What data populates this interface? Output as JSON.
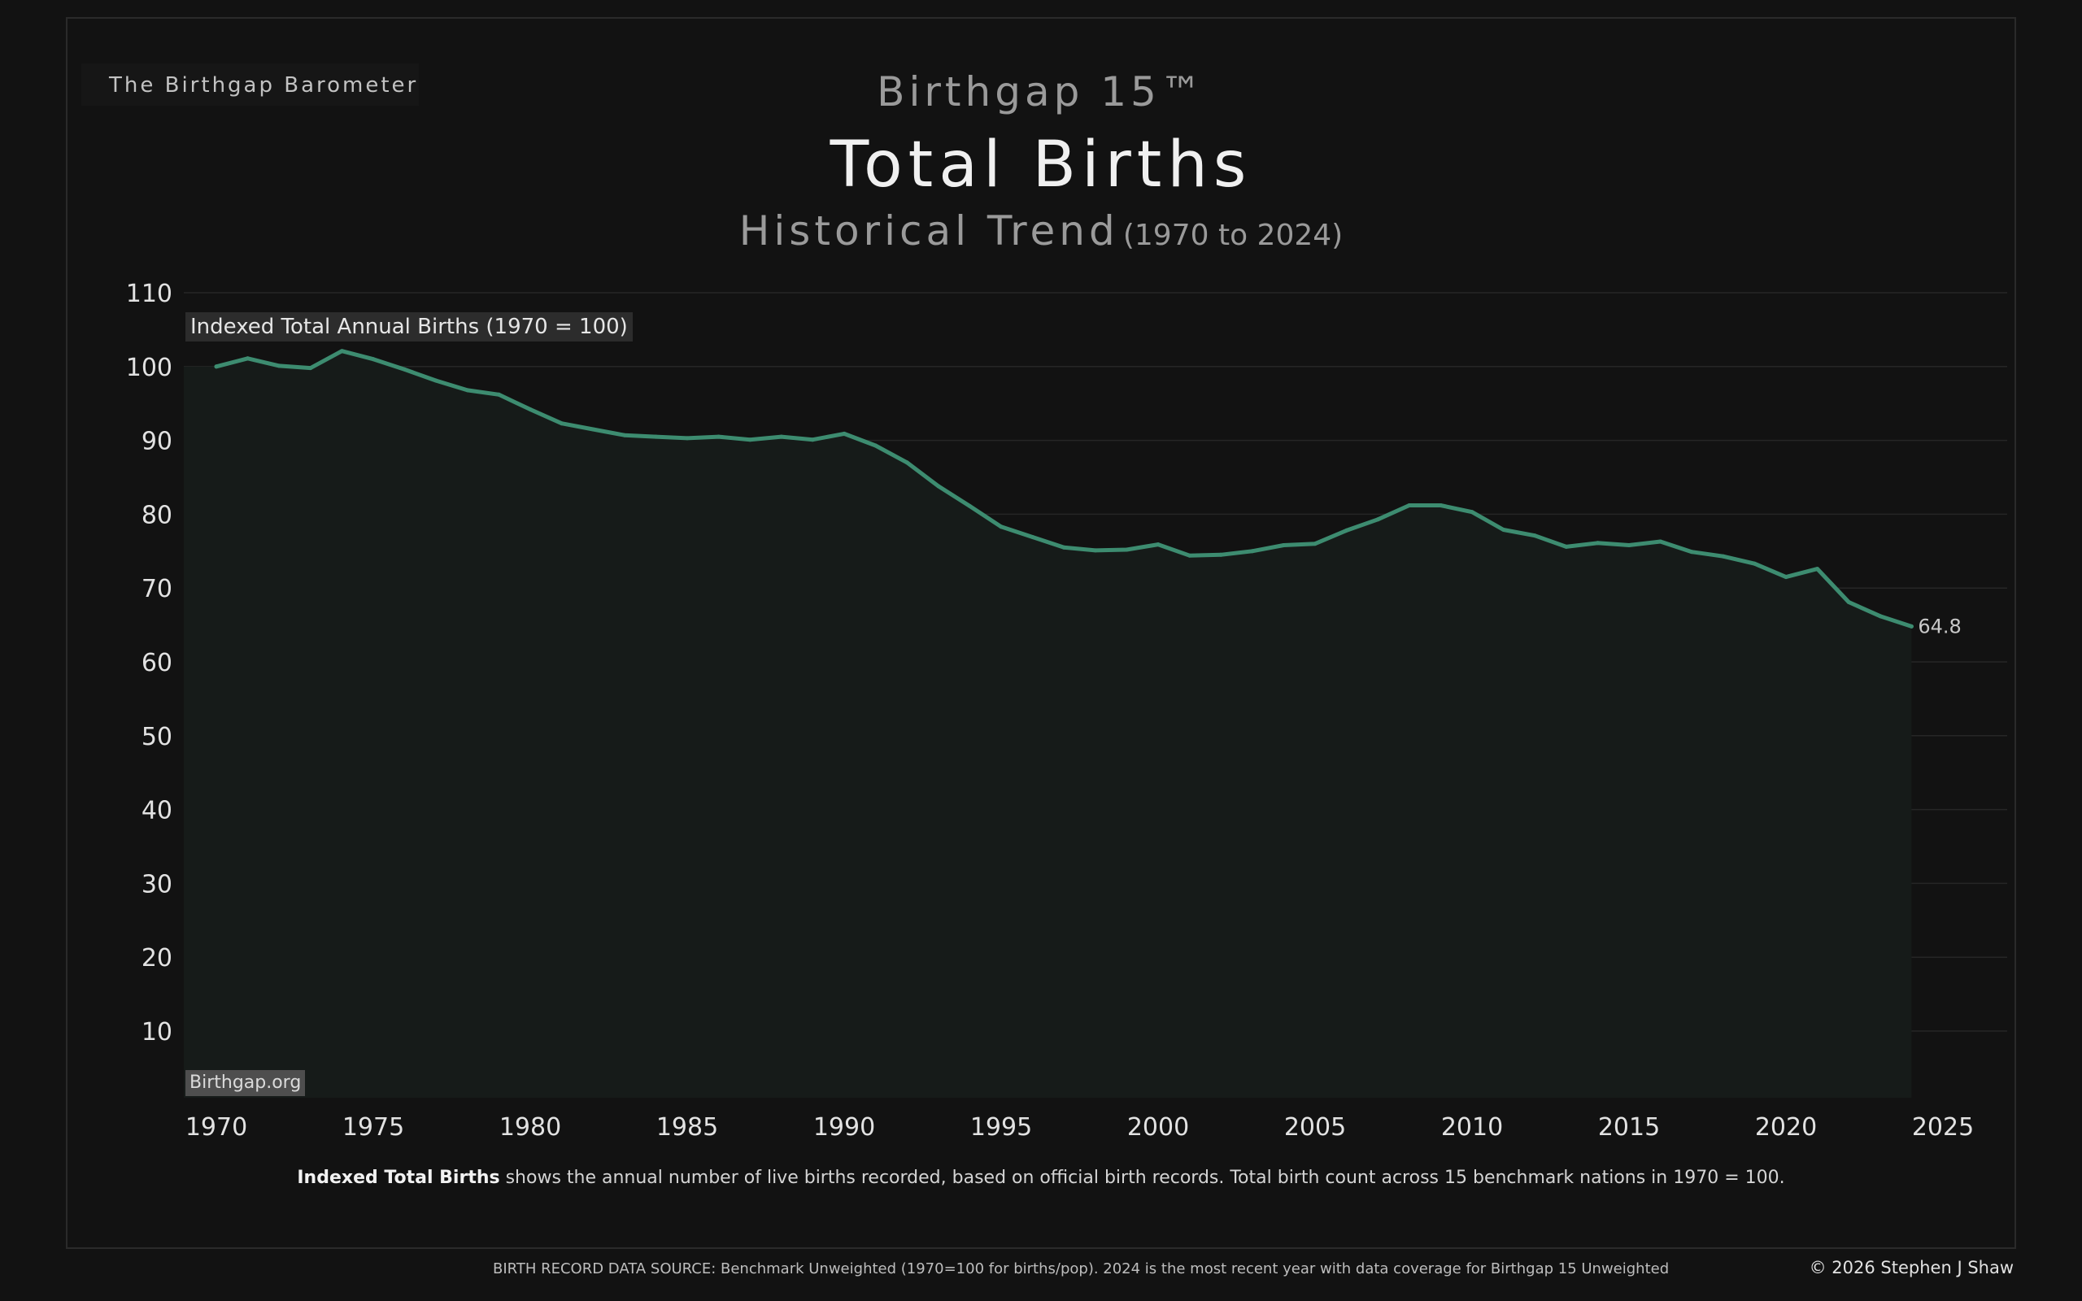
{
  "header": {
    "brand": "The Birthgap Barometer",
    "supertitle": "Birthgap 15™",
    "title": "Total Births",
    "subtitle": "Historical Trend",
    "subtitle_range": "(1970 to 2024)"
  },
  "footer": {
    "caption_bold": "Indexed Total Births",
    "caption_rest": " shows the annual number of live births recorded, based on official birth records. Total birth count across 15 benchmark nations in 1970 = 100.",
    "source": "BIRTH RECORD DATA SOURCE: Benchmark Unweighted (1970=100 for births/pop). 2024 is the most recent year with data coverage for Birthgap 15 Unweighted",
    "copyright": "© 2026 Stephen J Shaw",
    "watermark": "Birthgap.org"
  },
  "colors": {
    "background": "#121212",
    "line": "#3d8c70",
    "area": "#161b19",
    "grid": "#262626"
  },
  "chart_data": {
    "type": "line",
    "ylabel": "Indexed Total Annual Births (1970 = 100)",
    "xlim": [
      1970,
      2025
    ],
    "ylim": [
      0,
      110
    ],
    "x_ticks": [
      1970,
      1975,
      1980,
      1985,
      1990,
      1995,
      2000,
      2005,
      2010,
      2015,
      2020,
      2025
    ],
    "y_ticks": [
      10,
      20,
      30,
      40,
      50,
      60,
      70,
      80,
      90,
      100,
      110
    ],
    "grid": true,
    "end_label": "64.8",
    "series": [
      {
        "x": [
          1970,
          1971,
          1972,
          1973,
          1974,
          1975,
          1976,
          1977,
          1978,
          1979,
          1980,
          1981,
          1982,
          1983,
          1984,
          1985,
          1986,
          1987,
          1988,
          1989,
          1990,
          1991,
          1992,
          1993,
          1994,
          1995,
          1996,
          1997,
          1998,
          1999,
          2000,
          2001,
          2002,
          2003,
          2004,
          2005,
          2006,
          2007,
          2008,
          2009,
          2010,
          2011,
          2012,
          2013,
          2014,
          2015,
          2016,
          2017,
          2018,
          2019,
          2020,
          2021,
          2022,
          2023,
          2024
        ],
        "values": [
          100.0,
          101.1,
          100.1,
          99.8,
          102.1,
          101.0,
          99.6,
          98.1,
          96.8,
          96.2,
          94.2,
          92.3,
          91.5,
          90.7,
          90.5,
          90.3,
          90.5,
          90.1,
          90.5,
          90.1,
          90.9,
          89.3,
          87.0,
          83.8,
          81.1,
          78.3,
          76.9,
          75.5,
          75.1,
          75.2,
          75.9,
          74.4,
          74.5,
          75.0,
          75.8,
          76.0,
          77.8,
          79.3,
          81.2,
          81.2,
          80.3,
          77.9,
          77.1,
          75.6,
          76.1,
          75.8,
          76.3,
          74.9,
          74.3,
          73.3,
          71.5,
          72.6,
          68.1,
          66.2,
          64.8
        ]
      }
    ]
  }
}
